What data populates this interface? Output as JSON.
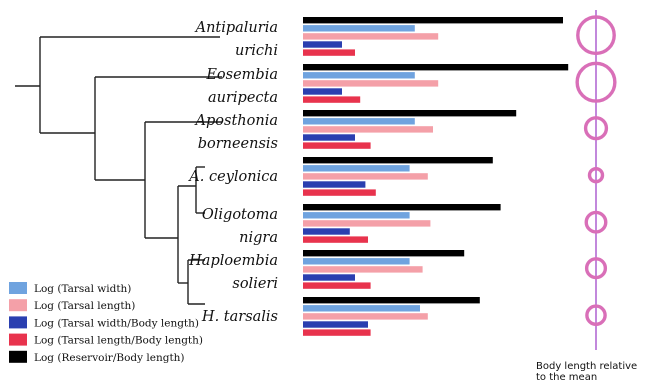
{
  "chart_data": {
    "type": "bar",
    "orientation": "horizontal",
    "categories": [
      "Antipaluria urichi",
      "Eosembia auripecta",
      "Aposthonia borneensis",
      "A. ceylonica",
      "Oligotoma nigra",
      "Haploembia solieri",
      "H. tarsalis"
    ],
    "category_lines": [
      [
        "Antipaluria",
        "urichi"
      ],
      [
        "Eosembia",
        "auripecta"
      ],
      [
        "Aposthonia",
        "borneensis"
      ],
      [
        "A. ceylonica"
      ],
      [
        "Oligotoma",
        "nigra"
      ],
      [
        "Haploembia",
        "solieri"
      ],
      [
        "H. tarsalis"
      ]
    ],
    "series": [
      {
        "name": "Log (Reservoir/Body length)",
        "color": "#000000",
        "values": [
          1.0,
          1.02,
          0.82,
          0.73,
          0.76,
          0.62,
          0.68
        ]
      },
      {
        "name": "Log (Tarsal width)",
        "color": "#6fa3df",
        "values": [
          0.43,
          0.43,
          0.43,
          0.41,
          0.41,
          0.41,
          0.45
        ]
      },
      {
        "name": "Log (Tarsal length)",
        "color": "#f4a0a8",
        "values": [
          0.52,
          0.52,
          0.5,
          0.48,
          0.49,
          0.46,
          0.48
        ]
      },
      {
        "name": "Log (Tarsal width/Body length)",
        "color": "#2a3fb0",
        "values": [
          0.15,
          0.15,
          0.2,
          0.24,
          0.18,
          0.2,
          0.25
        ]
      },
      {
        "name": "Log (Tarsal length/Body length)",
        "color": "#e8334d",
        "values": [
          0.2,
          0.22,
          0.26,
          0.28,
          0.25,
          0.26,
          0.26
        ]
      }
    ],
    "legend": [
      "Log (Tarsal width)",
      "Log (Tarsal length)",
      "Log (Tarsal width/Body length)",
      "Log (Tarsal length/Body length)",
      "Log (Reservoir/Body length)"
    ],
    "legend_placement": "bottom-left",
    "body_length_relative": [
      1.4,
      1.45,
      0.8,
      0.5,
      0.75,
      0.72,
      0.7
    ],
    "body_length_label": "Body length relative to the mean",
    "body_length_label_lines": [
      "Body length relative",
      "to the mean"
    ],
    "grid": false,
    "colors": {
      "circle": "#d96fb8",
      "axis_line": "#b36ad3",
      "tree": "#222222"
    }
  }
}
